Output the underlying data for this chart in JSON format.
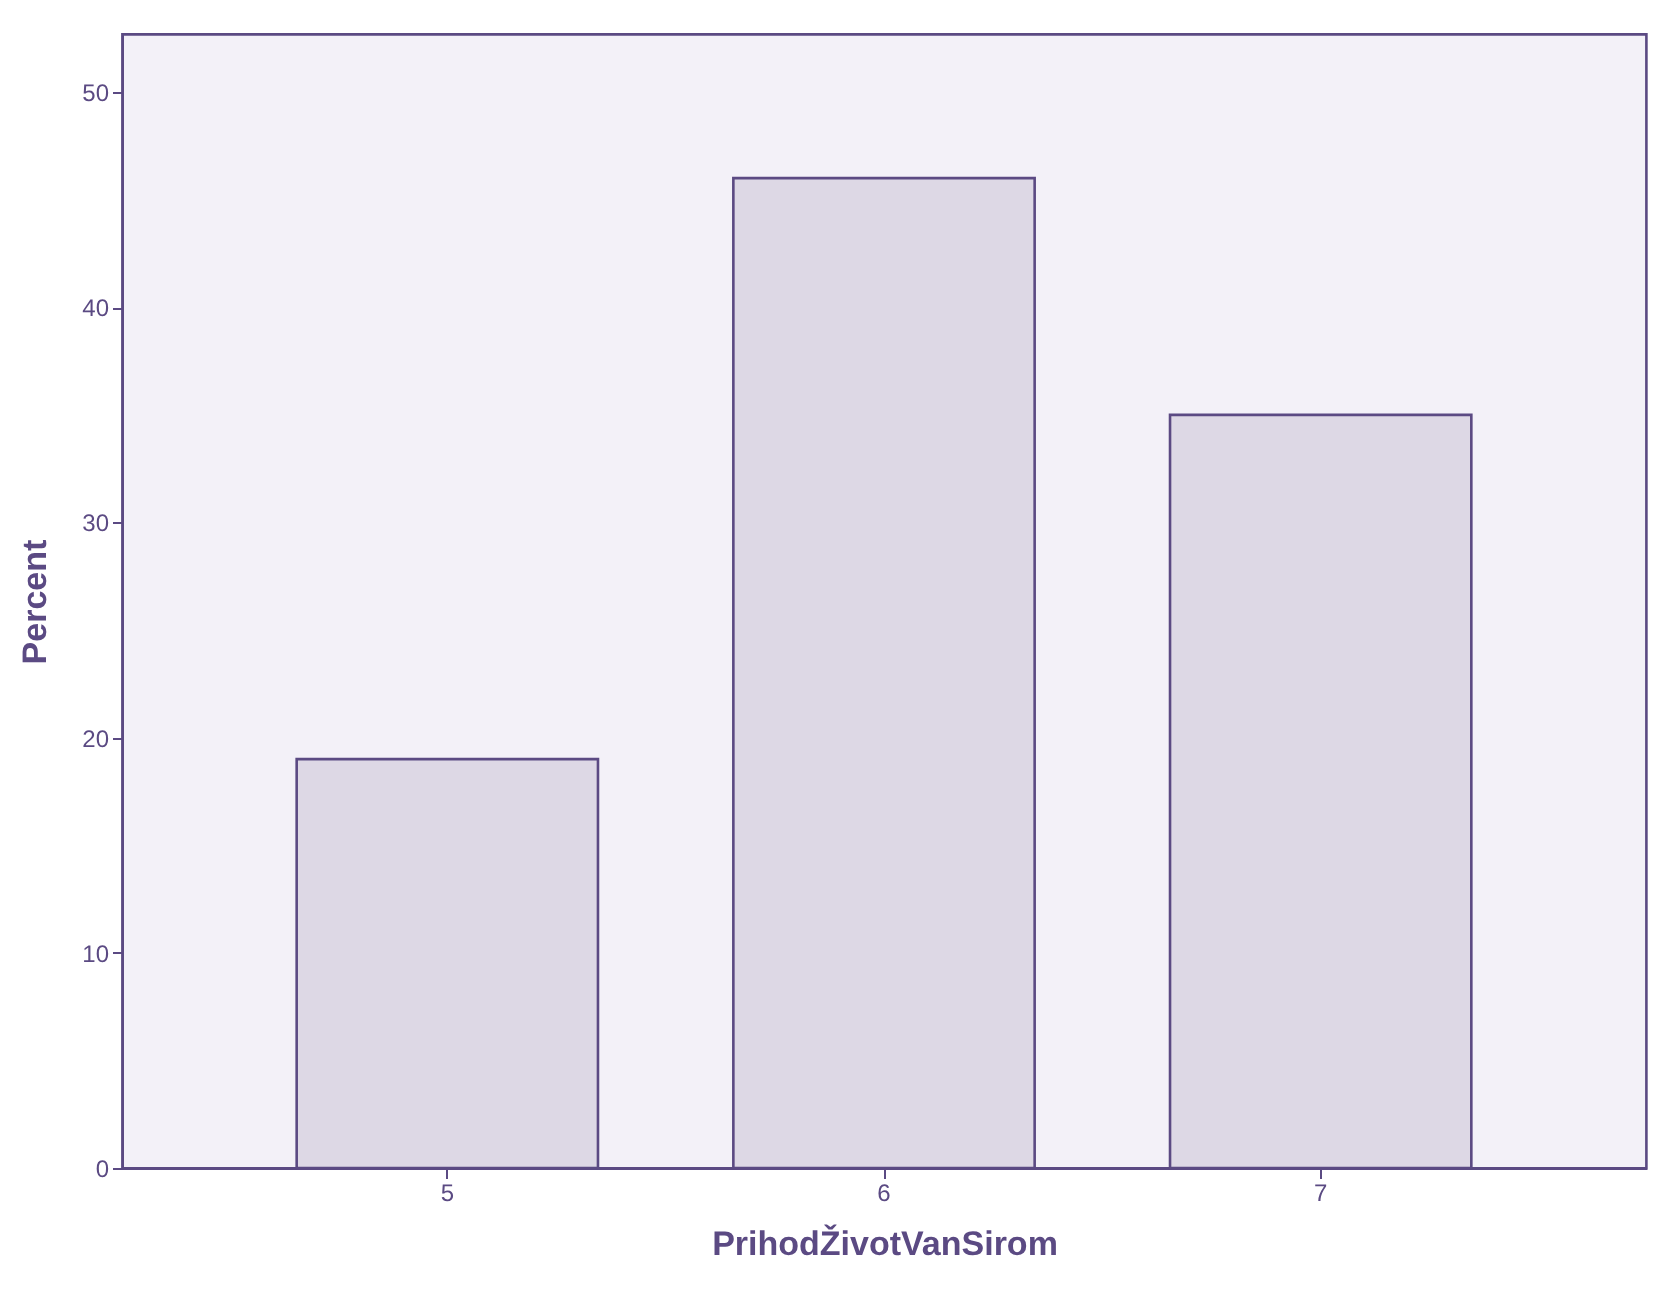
{
  "chart_data": {
    "type": "bar",
    "xlabel": "PrihodŽivotVanSirom",
    "ylabel": "Percent",
    "categories": [
      "5",
      "6",
      "7"
    ],
    "values": [
      19,
      46,
      35
    ],
    "color": "#ddd8e5",
    "ylim": [
      0,
      52.7
    ],
    "yticks": [
      0,
      10,
      20,
      30,
      40,
      50
    ],
    "grid": false
  }
}
